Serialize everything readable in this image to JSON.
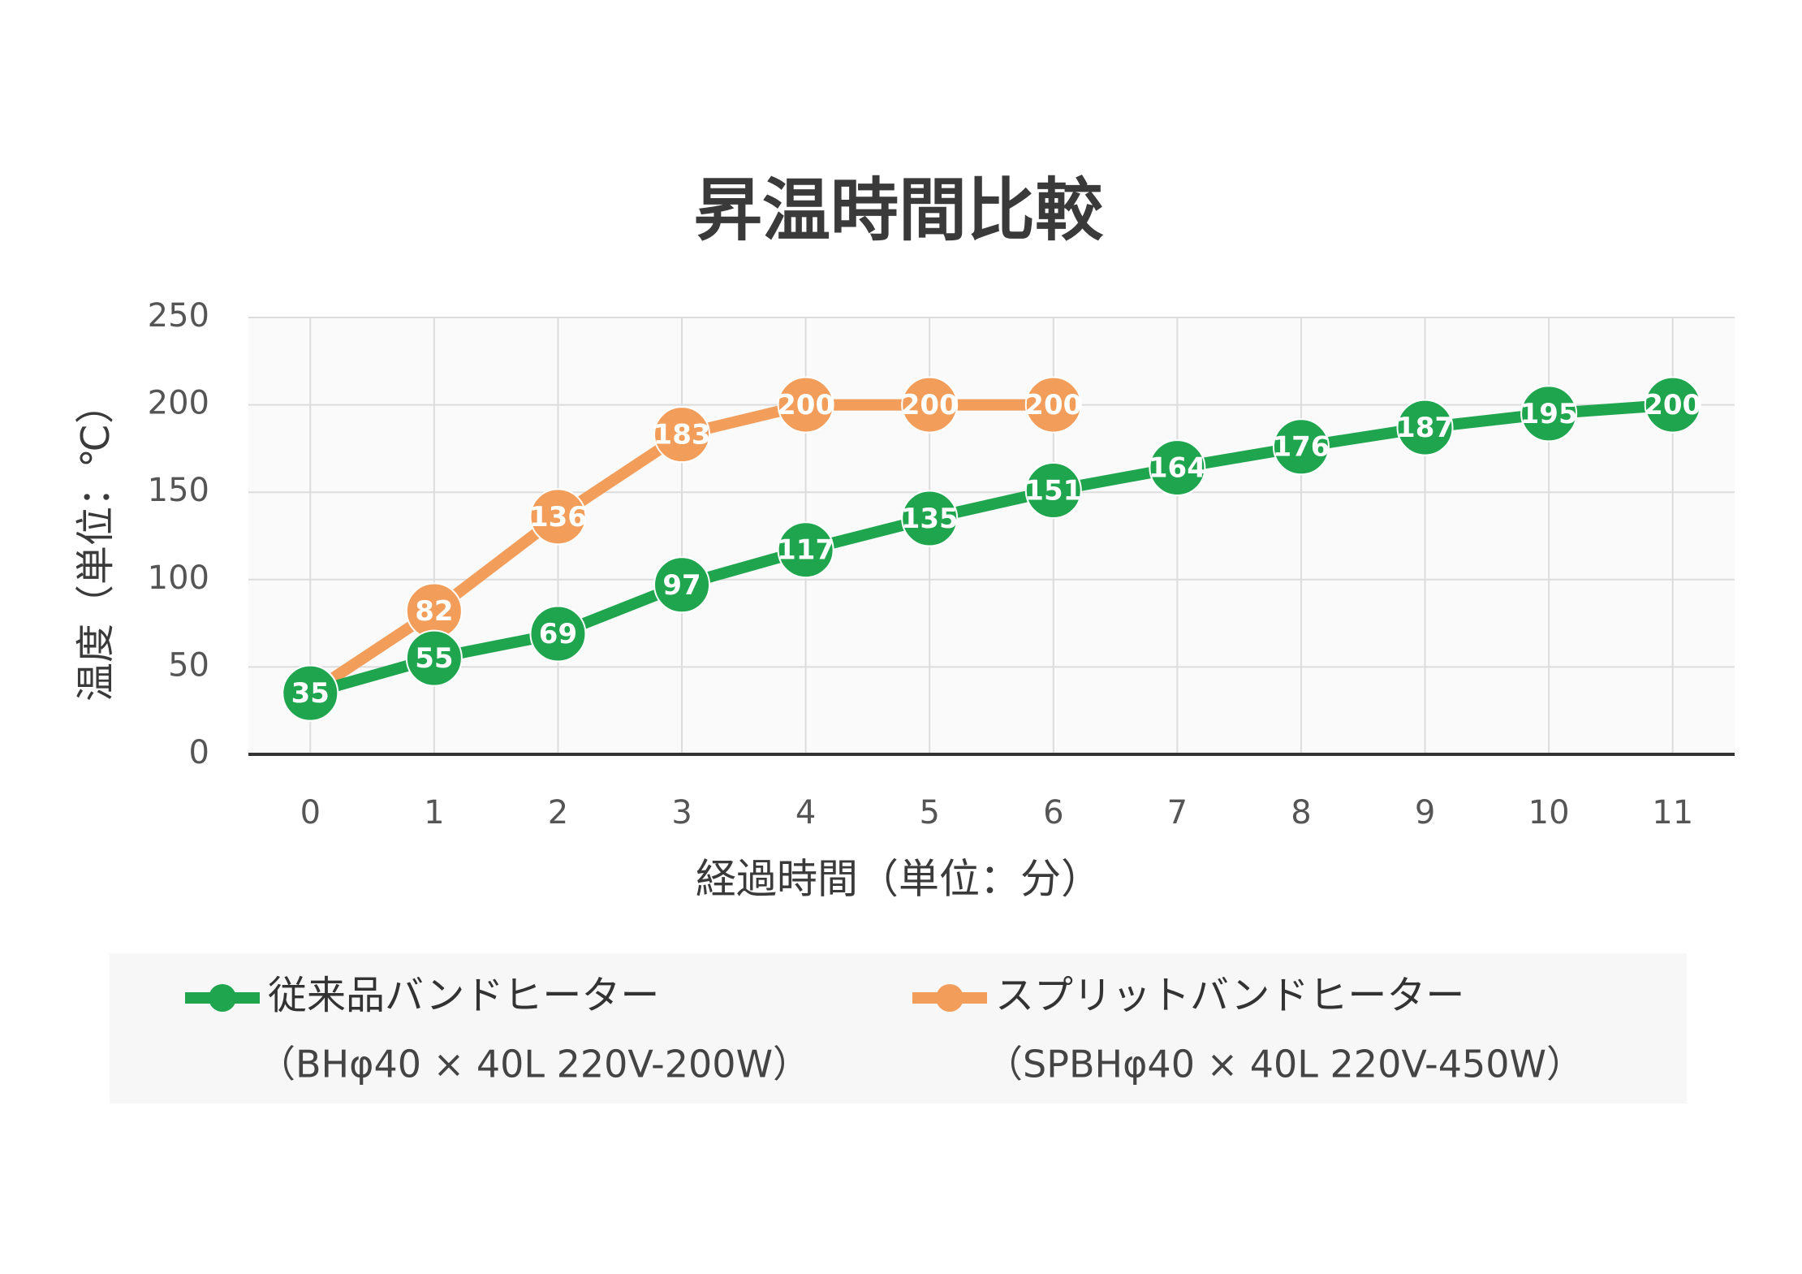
{
  "chart_data": {
    "type": "line",
    "title": "昇温時間比較",
    "x_label": "経過時間（単位：分）",
    "y_label": "温度（単位：℃）",
    "x": [
      0,
      1,
      2,
      3,
      4,
      5,
      6,
      7,
      8,
      9,
      10,
      11
    ],
    "xlim": [
      -0.5,
      11.5
    ],
    "xticks": [
      0,
      1,
      2,
      3,
      4,
      5,
      6,
      7,
      8,
      9,
      10,
      11
    ],
    "ylim": [
      0,
      250
    ],
    "yticks": [
      0,
      50,
      100,
      150,
      200,
      250
    ],
    "grid": true,
    "legend": "bottom",
    "series": [
      {
        "name": "従来品バンドヒーター",
        "description": "（BHφ40 × 40L 220V-200W）",
        "color": "#1fa54e",
        "values": [
          35,
          55,
          69,
          97,
          117,
          135,
          151,
          164,
          176,
          187,
          195,
          200
        ]
      },
      {
        "name": "スプリットバンドヒーター",
        "description": "（SPBHφ40 × 40L 220V-450W）",
        "color": "#f39d5b",
        "values": [
          35,
          82,
          136,
          183,
          200,
          200,
          200,
          null,
          null,
          null,
          null,
          null
        ]
      }
    ]
  }
}
